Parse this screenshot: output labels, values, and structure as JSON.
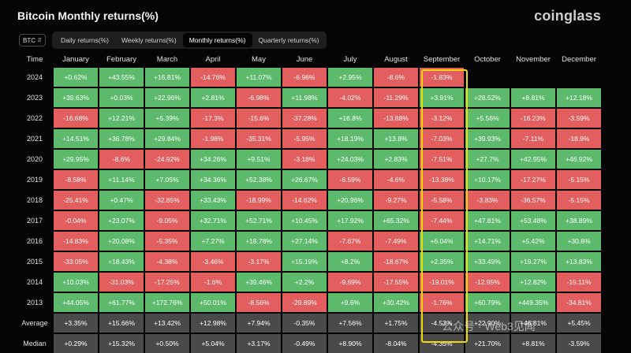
{
  "title": "Bitcoin Monthly returns(%)",
  "brand": "coinglass",
  "coin_select": {
    "value": "BTC"
  },
  "tabs": [
    {
      "label": "Daily returns(%)",
      "active": false
    },
    {
      "label": "Weekly returns(%)",
      "active": false
    },
    {
      "label": "Monthly returns(%)",
      "active": true
    },
    {
      "label": "Quarterly returns(%)",
      "active": false
    }
  ],
  "colors": {
    "positive": "#5dba6d",
    "negative": "#e35e5e",
    "highlight": "#f1d90c"
  },
  "table": {
    "time_header": "Time",
    "months": [
      "January",
      "February",
      "March",
      "April",
      "May",
      "June",
      "July",
      "August",
      "September",
      "October",
      "November",
      "December"
    ],
    "rows": [
      {
        "year": "2024",
        "values": [
          "+0.62%",
          "+43.55%",
          "+16.81%",
          "-14.76%",
          "+11.07%",
          "-6.96%",
          "+2.95%",
          "-8.6%",
          "-1.83%",
          "",
          "",
          ""
        ]
      },
      {
        "year": "2023",
        "values": [
          "+39.63%",
          "+0.03%",
          "+22.96%",
          "+2.81%",
          "-6.98%",
          "+11.98%",
          "-4.02%",
          "-11.29%",
          "+3.91%",
          "+28.52%",
          "+8.81%",
          "+12.18%"
        ]
      },
      {
        "year": "2022",
        "values": [
          "-16.68%",
          "+12.21%",
          "+5.39%",
          "-17.3%",
          "-15.6%",
          "-37.28%",
          "+16.8%",
          "-13.88%",
          "-3.12%",
          "+5.56%",
          "-16.23%",
          "-3.59%"
        ]
      },
      {
        "year": "2021",
        "values": [
          "+14.51%",
          "+36.78%",
          "+29.84%",
          "-1.98%",
          "-35.31%",
          "-5.95%",
          "+18.19%",
          "+13.8%",
          "-7.03%",
          "+39.93%",
          "-7.11%",
          "-18.9%"
        ]
      },
      {
        "year": "2020",
        "values": [
          "+29.95%",
          "-8.6%",
          "-24.92%",
          "+34.26%",
          "+9.51%",
          "-3.18%",
          "+24.03%",
          "+2.83%",
          "-7.51%",
          "+27.7%",
          "+42.95%",
          "+46.92%"
        ]
      },
      {
        "year": "2019",
        "values": [
          "-8.58%",
          "+11.14%",
          "+7.05%",
          "+34.36%",
          "+52.38%",
          "+26.67%",
          "-6.59%",
          "-4.6%",
          "-13.38%",
          "+10.17%",
          "-17.27%",
          "-5.15%"
        ]
      },
      {
        "year": "2018",
        "values": [
          "-25.41%",
          "+0.47%",
          "-32.85%",
          "+33.43%",
          "-18.99%",
          "-14.62%",
          "+20.96%",
          "-9.27%",
          "-5.58%",
          "-3.83%",
          "-36.57%",
          "-5.15%"
        ]
      },
      {
        "year": "2017",
        "values": [
          "-0.04%",
          "+23.07%",
          "-9.05%",
          "+32.71%",
          "+52.71%",
          "+10.45%",
          "+17.92%",
          "+65.32%",
          "-7.44%",
          "+47.81%",
          "+53.48%",
          "+38.89%"
        ]
      },
      {
        "year": "2016",
        "values": [
          "-14.83%",
          "+20.08%",
          "-5.35%",
          "+7.27%",
          "+18.78%",
          "+27.14%",
          "-7.67%",
          "-7.49%",
          "+6.04%",
          "+14.71%",
          "+5.42%",
          "+30.8%"
        ]
      },
      {
        "year": "2015",
        "values": [
          "-33.05%",
          "+18.43%",
          "-4.38%",
          "-3.46%",
          "-3.17%",
          "+15.19%",
          "+8.2%",
          "-18.67%",
          "+2.35%",
          "+33.49%",
          "+19.27%",
          "+13.83%"
        ]
      },
      {
        "year": "2014",
        "values": [
          "+10.03%",
          "-31.03%",
          "-17.25%",
          "-1.6%",
          "+39.46%",
          "+2.2%",
          "-9.69%",
          "-17.55%",
          "-19.01%",
          "-12.95%",
          "+12.82%",
          "-15.11%"
        ]
      },
      {
        "year": "2013",
        "values": [
          "+44.05%",
          "+61.77%",
          "+172.76%",
          "+50.01%",
          "-8.56%",
          "-29.89%",
          "+9.6%",
          "+30.42%",
          "-1.76%",
          "+60.79%",
          "+449.35%",
          "-34.81%"
        ]
      }
    ],
    "stat_rows": [
      {
        "label": "Average",
        "values": [
          "+3.35%",
          "+15.66%",
          "+13.42%",
          "+12.98%",
          "+7.94%",
          "-0.35%",
          "+7.56%",
          "+1.75%",
          "-4.53%",
          "+22.90%",
          "+46.81%",
          "+5.45%"
        ]
      },
      {
        "label": "Median",
        "values": [
          "+0.29%",
          "+15.32%",
          "+0.50%",
          "+5.04%",
          "+3.17%",
          "-0.49%",
          "+8.90%",
          "-8.04%",
          "-4.35%",
          "+21.70%",
          "+8.81%",
          "-3.59%"
        ]
      }
    ],
    "highlighted_month": "September"
  },
  "watermark": "公众号 · Web3见闻"
}
